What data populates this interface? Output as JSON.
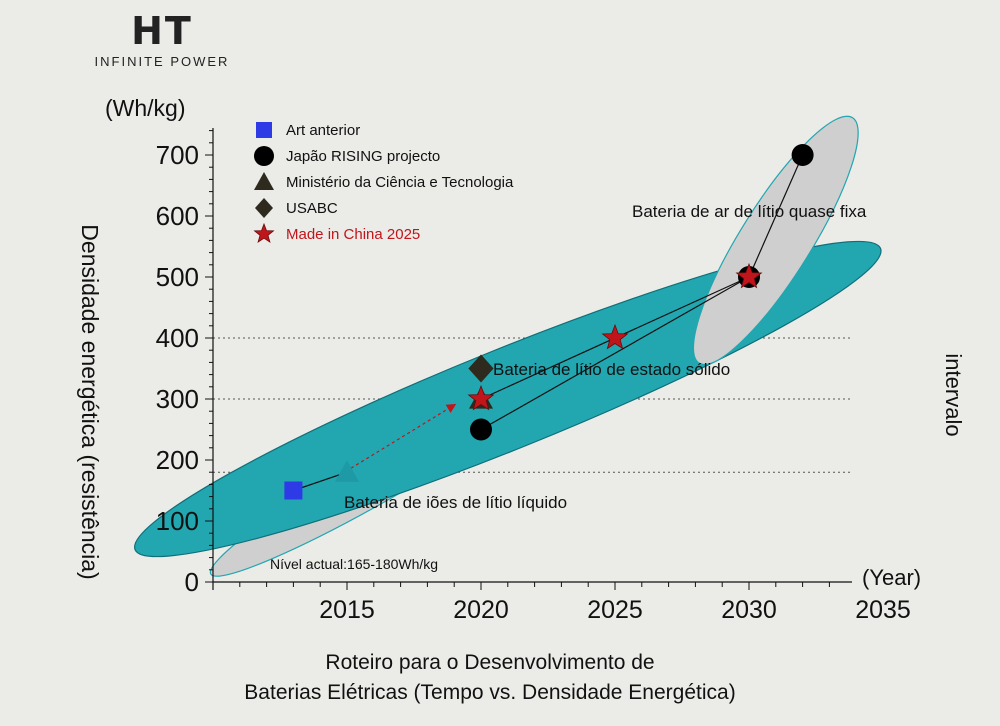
{
  "brand": {
    "logo": "HT",
    "tagline": "INFINITE POWER"
  },
  "caption": {
    "line1": "Roteiro para o Desenvolvimento de",
    "line2": "Baterias Elétricas (Tempo vs. Densidade Energética)"
  },
  "colors": {
    "teal": "#22a6b0",
    "grey_region": "#cfcfcf",
    "blue_square": "#2d3ae6",
    "star_red": "#c0161b",
    "diamond": "#2e2a1e",
    "triangle": "#2e2a1e",
    "circle": "#000000"
  },
  "chart_data": {
    "type": "scatter",
    "ylabel": "Densidade energética (resistência)",
    "yunit": "(Wh/kg)",
    "xunit": "(Year)",
    "right_label": "intervalo",
    "xlim": [
      2010,
      2035
    ],
    "ylim": [
      0,
      750
    ],
    "xticks": [
      "2015",
      "2020",
      "2025",
      "2030",
      "2035"
    ],
    "yticks": [
      "0",
      "100",
      "200",
      "300",
      "400",
      "500",
      "600",
      "700"
    ],
    "reference_lines": [
      180,
      300,
      400
    ],
    "current_level_note": "Nível actual:165-180Wh/kg",
    "regions": [
      {
        "label": "Bateria de iões de lítio líquido",
        "style": "grey",
        "cx": 2016.5,
        "cy": 180,
        "rx_years": 7.6,
        "ry_wh": 40,
        "angle_deg": -30
      },
      {
        "label": "Bateria de lítio de estado sólido",
        "style": "teal",
        "cx": 2021,
        "cy": 300,
        "rx_years": 15.0,
        "ry_wh": 82,
        "angle_deg": -22
      },
      {
        "label": "Bateria de ar de lítio quase fixa",
        "style": "grey",
        "cx": 2031,
        "cy": 560,
        "rx_years": 5.4,
        "ry_wh": 58,
        "angle_deg": -58
      }
    ],
    "legend": [
      {
        "name": "Art anterior",
        "marker": "square"
      },
      {
        "name": "Japão RISING projecto",
        "marker": "circle"
      },
      {
        "name": "Ministério da Ciência e Tecnologia",
        "marker": "triangle"
      },
      {
        "name": "USABC",
        "marker": "diamond"
      },
      {
        "name": "Made in China 2025",
        "marker": "star"
      }
    ],
    "series": [
      {
        "name": "Art anterior",
        "marker": "square",
        "points": [
          [
            2013,
            150
          ]
        ]
      },
      {
        "name": "Japão RISING projecto",
        "marker": "circle",
        "points": [
          [
            2020,
            250
          ],
          [
            2030,
            500
          ],
          [
            2032,
            700
          ]
        ]
      },
      {
        "name": "Ministério da Ciência e Tecnologia",
        "marker": "triangle",
        "points": [
          [
            2015,
            180
          ],
          [
            2020,
            300
          ]
        ]
      },
      {
        "name": "USABC",
        "marker": "diamond",
        "points": [
          [
            2020,
            350
          ]
        ]
      },
      {
        "name": "Made in China 2025",
        "marker": "star",
        "points": [
          [
            2020,
            300
          ],
          [
            2025,
            400
          ],
          [
            2030,
            500
          ]
        ]
      }
    ],
    "connectors": [
      [
        [
          2013,
          150
        ],
        [
          2015,
          180
        ]
      ],
      [
        [
          2020,
          250
        ],
        [
          2030,
          500
        ]
      ],
      [
        [
          2020,
          300
        ],
        [
          2030,
          500
        ]
      ],
      [
        [
          2030,
          500
        ],
        [
          2032,
          700
        ]
      ]
    ],
    "dashed_arrow": [
      [
        2015,
        180
      ],
      [
        2019,
        290
      ]
    ]
  }
}
